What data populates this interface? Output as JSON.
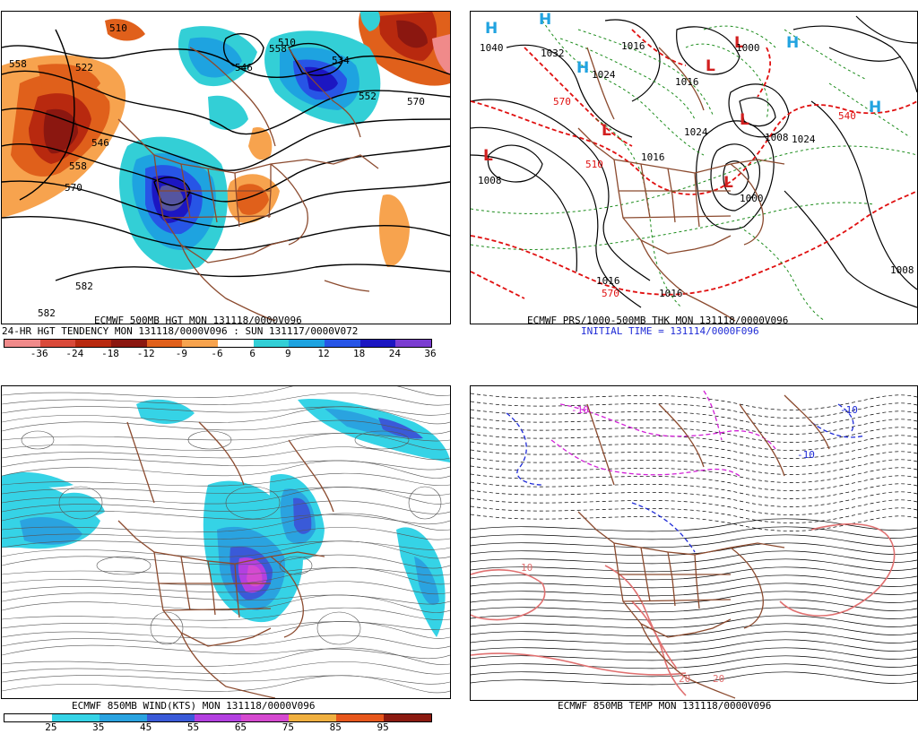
{
  "panels": [
    {
      "caption1": "ECMWF 500MB HGT MON 131118/0000V096",
      "caption2": "24-HR HGT TENDENCY MON 131118/0000V096 : SUN 131117/0000V072",
      "legend_labels": [
        "-36",
        "-24",
        "-18",
        "-12",
        "-9",
        "-6",
        "6",
        "9",
        "12",
        "18",
        "24",
        "36"
      ],
      "legend_colors": [
        "#f08a8a",
        "#d94a3a",
        "#b8290f",
        "#8b1710",
        "#e0601b",
        "#f7a34e",
        "#ffffff",
        "#33cfd6",
        "#1ea3e0",
        "#2755e6",
        "#1c16c2",
        "#7b3dd1"
      ],
      "contour_labels": [
        "558",
        "522",
        "546",
        "558",
        "570",
        "510",
        "534",
        "552",
        "570",
        "582",
        "582",
        "546",
        "558",
        "510"
      ]
    },
    {
      "caption1": "ECMWF PRS/1000-500MB THK MON 131118/0000V096",
      "caption2": "INITIAL TIME = 131114/0000F096",
      "centers": [
        "H",
        "H",
        "H",
        "H",
        "H",
        "L",
        "L",
        "L",
        "L",
        "L",
        "L"
      ],
      "contour_labels": [
        "1040",
        "1032",
        "1024",
        "1016",
        "1016",
        "1008",
        "1000",
        "1024",
        "1016",
        "1008",
        "1000",
        "1016",
        "1016",
        "1024",
        "1008",
        "570",
        "540",
        "570",
        "510"
      ]
    },
    {
      "caption1": "ECMWF 850MB WIND(KTS) MON 131118/0000V096",
      "legend_labels": [
        "25",
        "35",
        "45",
        "55",
        "65",
        "75",
        "85",
        "95"
      ],
      "legend_colors": [
        "#ffffff",
        "#35d3e6",
        "#2aa3e0",
        "#3a5ad8",
        "#b340e0",
        "#d54ad0",
        "#f0b040",
        "#e7571c",
        "#8b1a10"
      ]
    },
    {
      "caption1": "ECMWF 850MB TEMP MON 131118/0000V096",
      "contour_labels": [
        "-10",
        "-10",
        "-10",
        "10",
        "20",
        "20"
      ]
    }
  ],
  "colors": {
    "border": "#8b4a2e",
    "contour": "#000000",
    "thickness": "#e01010",
    "pressure_dash": "#1c8c1c",
    "h_center": "#21a3e0",
    "l_center": "#d21f1f",
    "temp_cold": "#1f2bd6",
    "temp_purple": "#d11fd6",
    "temp_warm": "#e07070"
  }
}
